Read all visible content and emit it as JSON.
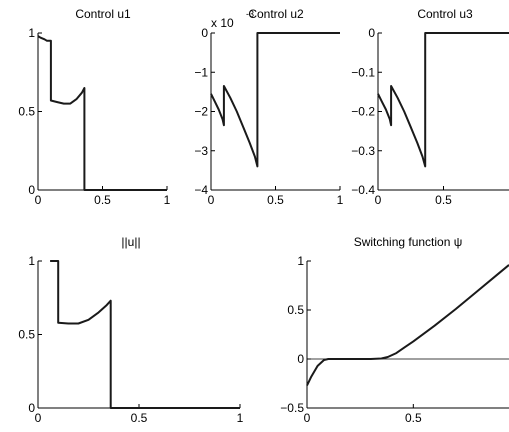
{
  "chart_data": [
    {
      "type": "line",
      "title": "Control u1",
      "xlim": [
        0,
        1
      ],
      "ylim": [
        0,
        1
      ],
      "xticks": [
        "0",
        "0.5",
        "1"
      ],
      "yticks": [
        "0",
        "0.5",
        "1"
      ],
      "series": [
        {
          "x": [
            0,
            0.02,
            0.05,
            0.07,
            0.1,
            0.1,
            0.15,
            0.2,
            0.25,
            0.3,
            0.34,
            0.36,
            0.36,
            0.4,
            1.0
          ],
          "y": [
            0.98,
            0.97,
            0.96,
            0.95,
            0.95,
            0.57,
            0.56,
            0.55,
            0.55,
            0.58,
            0.62,
            0.65,
            0.0,
            0.0,
            0.0
          ]
        }
      ]
    },
    {
      "type": "line",
      "title": "Control u2",
      "exponent_label": "x 10",
      "exponent_power": "-3",
      "xlim": [
        0,
        1
      ],
      "ylim": [
        -4,
        0
      ],
      "xticks": [
        "0",
        "0.5",
        "1"
      ],
      "yticks": [
        "−4",
        "−3",
        "−2",
        "−1",
        "0"
      ],
      "series": [
        {
          "x": [
            0,
            0.03,
            0.06,
            0.09,
            0.1,
            0.1,
            0.15,
            0.2,
            0.25,
            0.3,
            0.34,
            0.36,
            0.36,
            0.5,
            1.0
          ],
          "y": [
            -1.55,
            -1.75,
            -1.95,
            -2.2,
            -2.35,
            -1.35,
            -1.65,
            -2.0,
            -2.4,
            -2.8,
            -3.15,
            -3.4,
            0.0,
            0.0,
            0.0
          ]
        }
      ]
    },
    {
      "type": "line",
      "title": "Control u3",
      "xlim": [
        0,
        1
      ],
      "ylim": [
        -0.4,
        0
      ],
      "xticks": [
        "0",
        "0.5"
      ],
      "yticks": [
        "−0.4",
        "−0.3",
        "−0.2",
        "−0.1",
        "0"
      ],
      "series": [
        {
          "x": [
            0,
            0.03,
            0.06,
            0.09,
            0.1,
            0.1,
            0.15,
            0.2,
            0.25,
            0.3,
            0.34,
            0.36,
            0.36,
            0.5,
            1.0
          ],
          "y": [
            -0.155,
            -0.175,
            -0.195,
            -0.22,
            -0.235,
            -0.135,
            -0.165,
            -0.2,
            -0.24,
            -0.28,
            -0.315,
            -0.34,
            0.0,
            0.0,
            0.0
          ]
        }
      ]
    },
    {
      "type": "line",
      "title": "||u||",
      "xlim": [
        0,
        1
      ],
      "ylim": [
        0,
        1
      ],
      "xticks": [
        "0",
        "0.5",
        "1"
      ],
      "yticks": [
        "0",
        "0.5",
        "1"
      ],
      "series": [
        {
          "x": [
            0.06,
            0.1,
            0.1,
            0.15,
            0.2,
            0.25,
            0.3,
            0.34,
            0.36,
            0.36,
            0.5,
            1.0
          ],
          "y": [
            1.0,
            1.0,
            0.58,
            0.575,
            0.575,
            0.6,
            0.65,
            0.7,
            0.73,
            0.0,
            0.0,
            0.0
          ]
        }
      ]
    },
    {
      "type": "line",
      "title": "Switching function ψ",
      "xlim": [
        0,
        0.95
      ],
      "ylim": [
        -0.5,
        1
      ],
      "xticks": [
        "0",
        "0.5"
      ],
      "yticks": [
        "−0.5",
        "0",
        "0.5",
        "1"
      ],
      "reference_line_y": 0,
      "series": [
        {
          "x": [
            0,
            0.02,
            0.05,
            0.08,
            0.1,
            0.15,
            0.2,
            0.25,
            0.3,
            0.35,
            0.38,
            0.42,
            0.46,
            0.5,
            0.6,
            0.7,
            0.8,
            0.9,
            0.95
          ],
          "y": [
            -0.27,
            -0.18,
            -0.07,
            -0.01,
            0.0,
            0.0,
            0.0,
            0.0,
            0.0,
            0.005,
            0.02,
            0.06,
            0.12,
            0.18,
            0.34,
            0.51,
            0.69,
            0.87,
            0.96
          ]
        }
      ]
    }
  ]
}
